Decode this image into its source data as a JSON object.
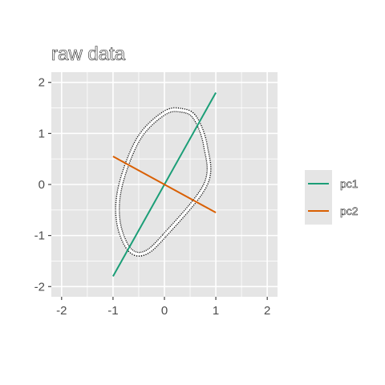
{
  "chart_data": {
    "type": "line",
    "title": "raw data",
    "xlabel": "",
    "ylabel": "",
    "xlim": [
      -2.2,
      2.2
    ],
    "ylim": [
      -2.2,
      2.2
    ],
    "x_ticks": [
      -2,
      -1,
      0,
      1,
      2
    ],
    "y_ticks": [
      -2,
      -1,
      0,
      1,
      2
    ],
    "x_tick_labels": [
      "-2",
      "-1",
      "0",
      "1",
      "2"
    ],
    "y_tick_labels": [
      "-2",
      "-1",
      "0",
      "1",
      "2"
    ],
    "grid": true,
    "panel_background": "#e5e5e5",
    "grid_color": "#ffffff",
    "legend_position": "right",
    "ellipse": {
      "center": [
        0,
        0
      ],
      "outline_color": "#000000",
      "fill_color": "#ffffff",
      "style": "double dotted outline",
      "points": [
        [
          0.0,
          -1.0
        ],
        [
          0.8,
          0.0
        ],
        [
          0.8,
          0.75
        ],
        [
          0.6,
          1.3
        ],
        [
          0.35,
          1.45
        ],
        [
          0.0,
          1.4
        ],
        [
          -0.5,
          0.9
        ],
        [
          -0.85,
          0.0
        ],
        [
          -0.9,
          -0.7
        ],
        [
          -0.7,
          -1.25
        ],
        [
          -0.4,
          -1.35
        ],
        [
          0.0,
          -1.0
        ]
      ]
    },
    "series": [
      {
        "name": "pc1",
        "color": "#1b9e77",
        "points": [
          [
            -1,
            -1.8
          ],
          [
            1,
            1.8
          ]
        ]
      },
      {
        "name": "pc2",
        "color": "#d95f02",
        "points": [
          [
            -1,
            0.55
          ],
          [
            1,
            -0.55
          ]
        ]
      }
    ]
  }
}
